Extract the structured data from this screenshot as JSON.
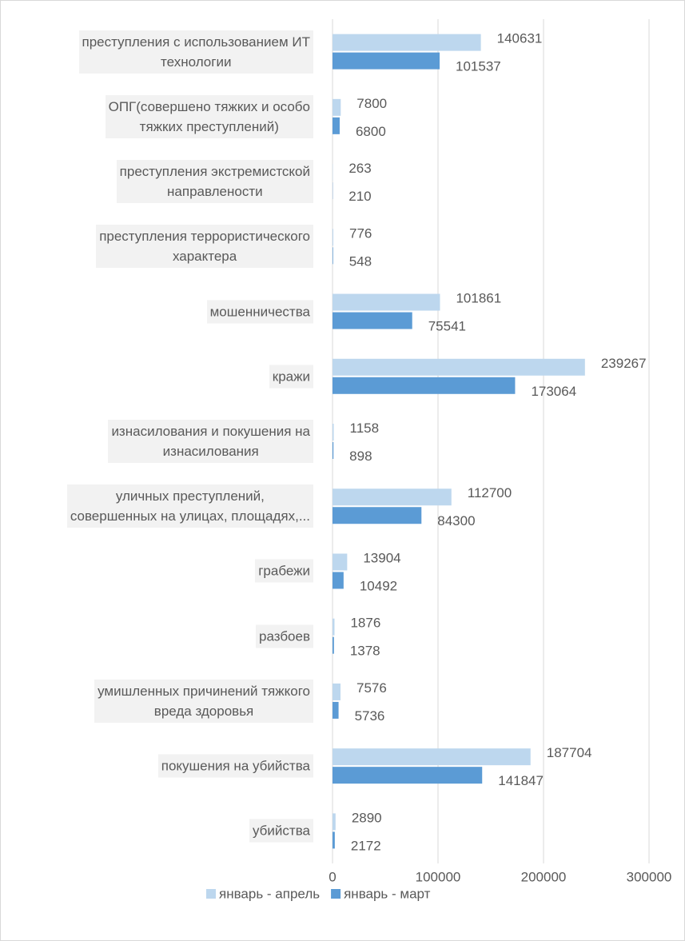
{
  "chart_data": {
    "type": "barh",
    "categories": [
      "преступления с использованием ИТ\nтехнологии",
      "ОПГ(совершено тяжких и особо\nтяжких преступлений)",
      "преступления экстремистской\nнаправлености",
      "преступления террористического\nхарактера",
      "мошенничества",
      "кражи",
      "изнасилования и покушения на\nизнасилования",
      "уличных преступлений,\nсовершенных на улицах, площадях,...",
      "грабежи",
      "разбоев",
      "умишленных причинений тяжкого\nвреда здоровья",
      "покушения на убийства",
      "убийства"
    ],
    "series": [
      {
        "name": "январь - апрель",
        "color": "#bdd7ee",
        "values": [
          140631,
          7800,
          263,
          776,
          101861,
          239267,
          1158,
          112700,
          13904,
          1876,
          7576,
          187704,
          2890
        ]
      },
      {
        "name": "январь - март",
        "color": "#5b9bd5",
        "values": [
          101537,
          6800,
          210,
          548,
          75541,
          173064,
          898,
          84300,
          10492,
          1378,
          5736,
          141847,
          2172
        ]
      }
    ],
    "xlim": [
      0,
      300000
    ],
    "xticks": [
      0,
      100000,
      200000,
      300000
    ],
    "grid": true
  }
}
